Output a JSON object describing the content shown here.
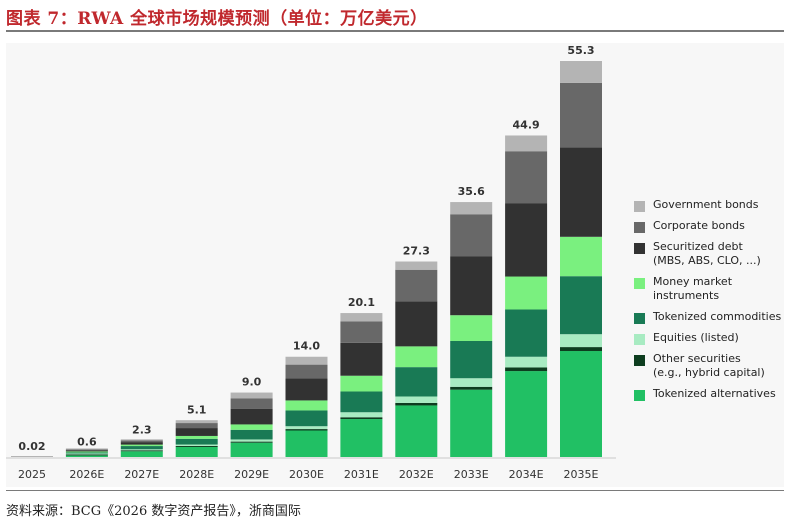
{
  "header": {
    "title": "图表 7：RWA 全球市场规模预测（单位：万亿美元）"
  },
  "footer": {
    "source": "资料来源：BCG《2026 数字资产报告》，浙商国际"
  },
  "colors": {
    "title": "#c0282d",
    "series": [
      "#21c064",
      "#0d3d1f",
      "#a8ebc2",
      "#197a55",
      "#7af07f",
      "#323232",
      "#686868",
      "#b4b4b4"
    ]
  },
  "chart_data": {
    "type": "bar",
    "stacked": true,
    "categories": [
      "2025",
      "2026E",
      "2027E",
      "2028E",
      "2029E",
      "2030E",
      "2031E",
      "2032E",
      "2033E",
      "2034E",
      "2035E"
    ],
    "totals": [
      0.02,
      0.6,
      2.3,
      5.1,
      9.0,
      14.0,
      20.1,
      27.3,
      35.6,
      44.9,
      55.3
    ],
    "total_labels": [
      "0.02",
      "0.6",
      "2.3",
      "5.1",
      "9.0",
      "14.0",
      "20.1",
      "27.3",
      "35.6",
      "44.9",
      "55.3"
    ],
    "ylim": [
      0,
      55.3
    ],
    "series": [
      {
        "name": "Tokenized alternatives",
        "values": [
          0.0,
          0.22,
          0.8,
          1.4,
          2.0,
          3.7,
          5.3,
          7.2,
          9.4,
          12.0,
          14.8
        ]
      },
      {
        "name": "Other securities\n(e.g., hybrid capital)",
        "values": [
          0.0,
          0.02,
          0.05,
          0.1,
          0.15,
          0.2,
          0.25,
          0.35,
          0.4,
          0.5,
          0.55
        ]
      },
      {
        "name": "Equities (listed)",
        "values": [
          0.0,
          0.03,
          0.1,
          0.2,
          0.3,
          0.4,
          0.7,
          0.9,
          1.2,
          1.5,
          1.8
        ]
      },
      {
        "name": "Tokenized commodities",
        "values": [
          0.0,
          0.1,
          0.45,
          0.8,
          1.35,
          2.2,
          2.9,
          4.1,
          5.2,
          6.6,
          8.1
        ]
      },
      {
        "name": "Money market\ninstruments",
        "values": [
          0.0,
          0.05,
          0.2,
          0.4,
          0.75,
          1.4,
          2.2,
          2.9,
          3.6,
          4.6,
          5.5
        ]
      },
      {
        "name": "Securitized debt\n(MBS, ABS, CLO, ...)",
        "values": [
          0.0,
          0.08,
          0.35,
          1.1,
          2.2,
          3.1,
          4.6,
          6.3,
          8.2,
          10.2,
          12.5
        ]
      },
      {
        "name": "Corporate bonds",
        "values": [
          0.0,
          0.06,
          0.25,
          0.7,
          1.45,
          1.9,
          3.0,
          4.4,
          5.9,
          7.3,
          9.0
        ]
      },
      {
        "name": "Government bonds",
        "values": [
          0.02,
          0.04,
          0.1,
          0.4,
          0.8,
          1.1,
          1.15,
          1.15,
          1.7,
          2.2,
          3.05
        ]
      }
    ],
    "legend": {
      "placement": "right",
      "items": [
        "Government bonds",
        "Corporate bonds",
        "Securitized debt\n(MBS, ABS, CLO, ...)",
        "Money market\ninstruments",
        "Tokenized commodities",
        "Equities (listed)",
        "Other securities\n(e.g., hybrid capital)",
        "Tokenized alternatives"
      ]
    },
    "grid": false
  }
}
